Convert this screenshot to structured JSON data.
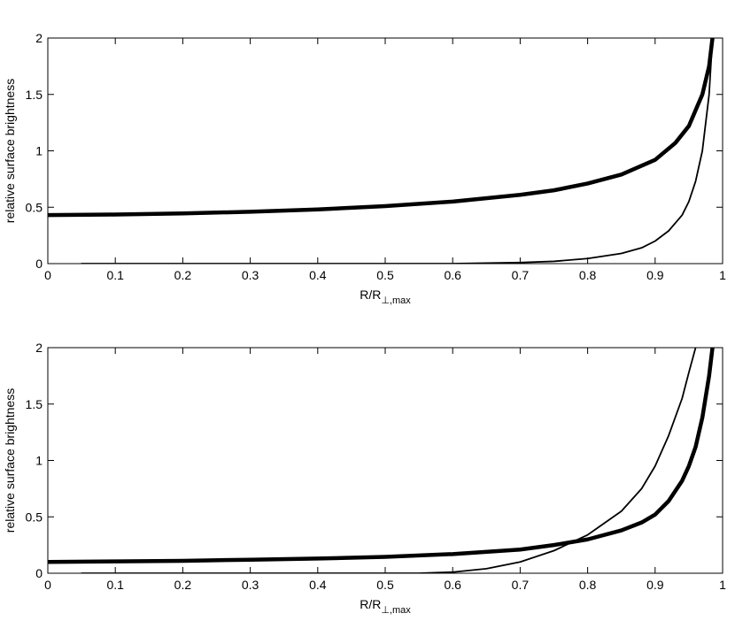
{
  "chart_data": [
    {
      "type": "line",
      "title": "",
      "xlabel_main": "R/R",
      "xlabel_sub": "⊥,max",
      "ylabel": "relative surface brightness",
      "xlim": [
        0,
        1
      ],
      "ylim": [
        0,
        2
      ],
      "xticks": [
        0,
        0.1,
        0.2,
        0.3,
        0.4,
        0.5,
        0.6,
        0.7,
        0.8,
        0.9,
        1
      ],
      "xtick_labels": [
        "0",
        "0.1",
        "0.2",
        "0.3",
        "0.4",
        "0.5",
        "0.6",
        "0.7",
        "0.8",
        "0.9",
        "1"
      ],
      "yticks": [
        0,
        0.5,
        1,
        1.5,
        2
      ],
      "ytick_labels": [
        "0",
        "0.5",
        "1",
        "1.5",
        "2"
      ],
      "series": [
        {
          "style": "thick",
          "x": [
            0,
            0.1,
            0.2,
            0.3,
            0.4,
            0.5,
            0.6,
            0.7,
            0.75,
            0.8,
            0.85,
            0.9,
            0.93,
            0.95,
            0.97,
            0.98,
            0.985
          ],
          "y": [
            0.43,
            0.435,
            0.445,
            0.46,
            0.48,
            0.51,
            0.55,
            0.61,
            0.65,
            0.71,
            0.79,
            0.92,
            1.07,
            1.22,
            1.5,
            1.75,
            2.0
          ]
        },
        {
          "style": "thin",
          "x": [
            0.05,
            0.6,
            0.7,
            0.75,
            0.8,
            0.85,
            0.88,
            0.9,
            0.92,
            0.94,
            0.95,
            0.96,
            0.97,
            0.98,
            0.985
          ],
          "y": [
            0,
            0.0,
            0.01,
            0.02,
            0.045,
            0.09,
            0.14,
            0.2,
            0.29,
            0.43,
            0.55,
            0.73,
            1.0,
            1.5,
            2.0
          ]
        }
      ]
    },
    {
      "type": "line",
      "title": "",
      "xlabel_main": "R/R",
      "xlabel_sub": "⊥,max",
      "ylabel": "relative surface brightness",
      "xlim": [
        0,
        1
      ],
      "ylim": [
        0,
        2
      ],
      "xticks": [
        0,
        0.1,
        0.2,
        0.3,
        0.4,
        0.5,
        0.6,
        0.7,
        0.8,
        0.9,
        1
      ],
      "xtick_labels": [
        "0",
        "0.1",
        "0.2",
        "0.3",
        "0.4",
        "0.5",
        "0.6",
        "0.7",
        "0.8",
        "0.9",
        "1"
      ],
      "yticks": [
        0,
        0.5,
        1,
        1.5,
        2
      ],
      "ytick_labels": [
        "0",
        "0.5",
        "1",
        "1.5",
        "2"
      ],
      "series": [
        {
          "style": "thick",
          "x": [
            0,
            0.1,
            0.2,
            0.3,
            0.4,
            0.5,
            0.6,
            0.7,
            0.75,
            0.8,
            0.85,
            0.88,
            0.9,
            0.92,
            0.94,
            0.95,
            0.96,
            0.97,
            0.98,
            0.985
          ],
          "y": [
            0.1,
            0.105,
            0.11,
            0.12,
            0.13,
            0.145,
            0.17,
            0.21,
            0.25,
            0.3,
            0.38,
            0.45,
            0.52,
            0.64,
            0.82,
            0.95,
            1.12,
            1.38,
            1.75,
            2.0
          ]
        },
        {
          "style": "thin",
          "x": [
            0.05,
            0.55,
            0.6,
            0.65,
            0.7,
            0.75,
            0.8,
            0.85,
            0.88,
            0.9,
            0.92,
            0.94,
            0.95,
            0.96
          ],
          "y": [
            0,
            0.0,
            0.01,
            0.04,
            0.1,
            0.2,
            0.34,
            0.55,
            0.75,
            0.95,
            1.22,
            1.55,
            1.78,
            2.0
          ]
        }
      ]
    }
  ]
}
